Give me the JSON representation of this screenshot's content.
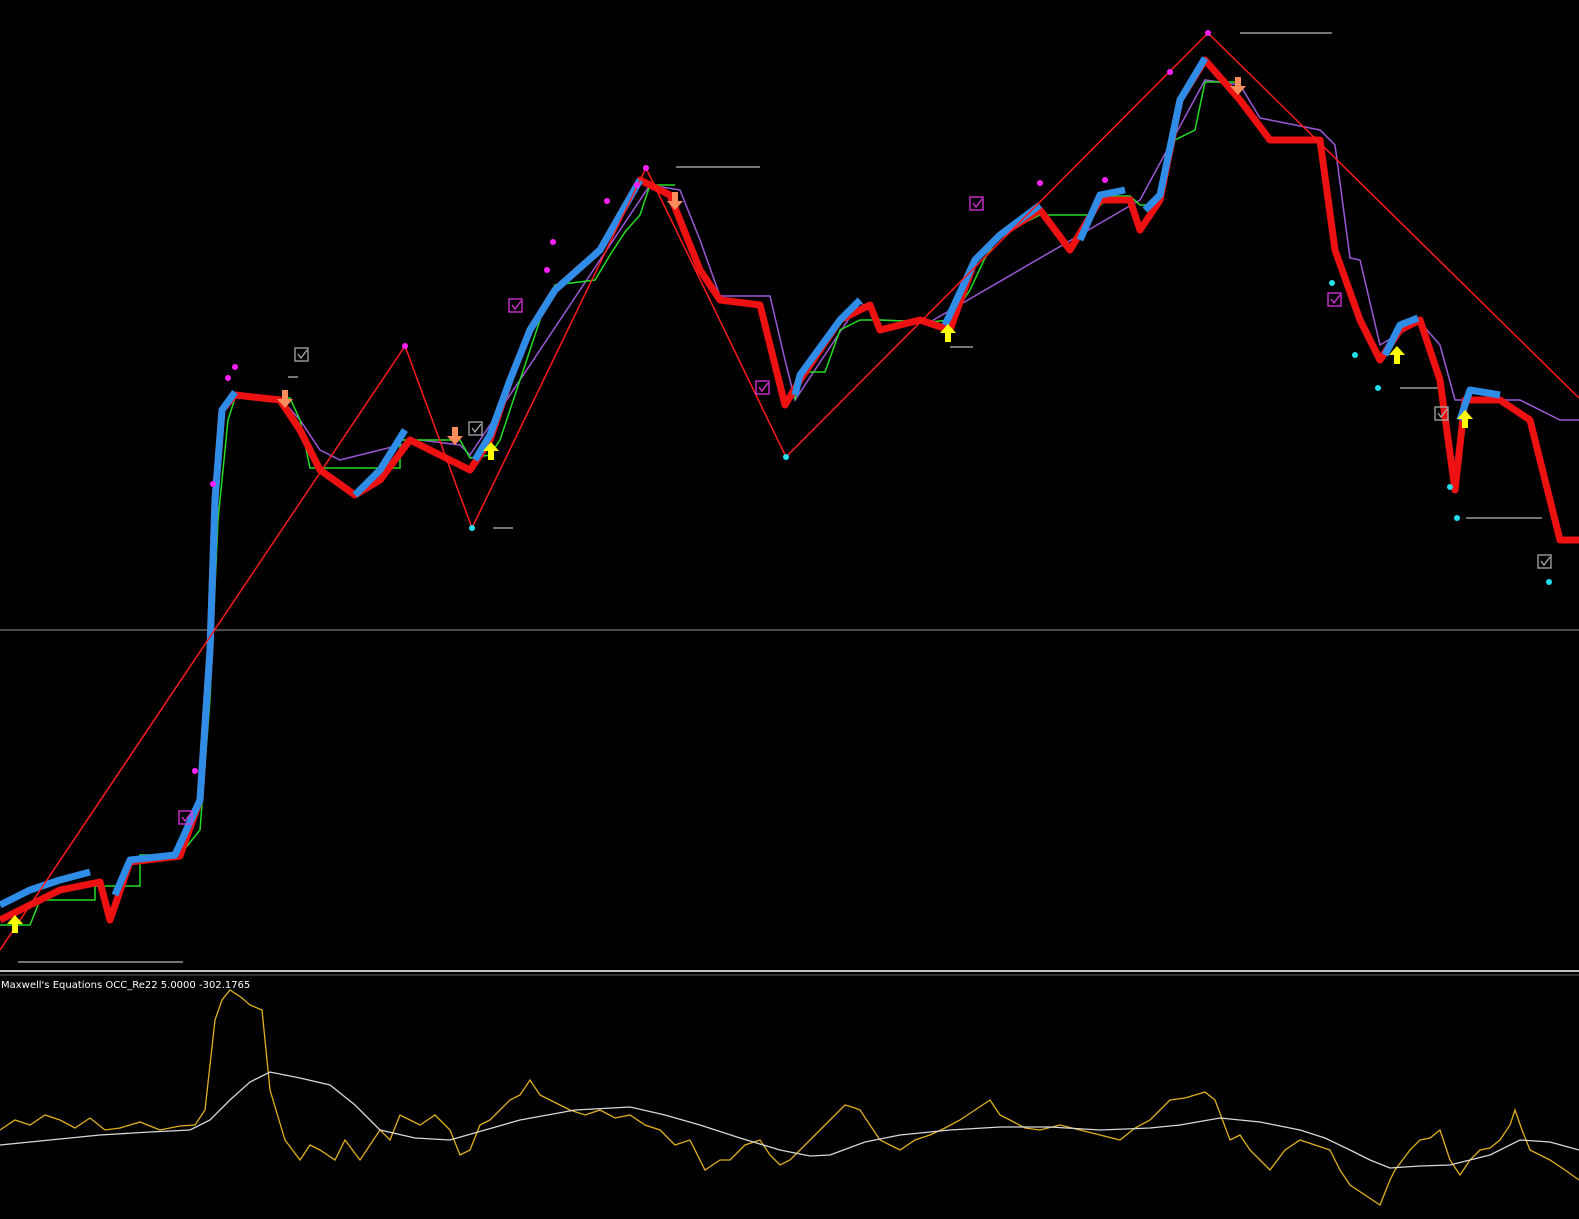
{
  "indicator": {
    "name": "Maxwell's Equations OCC_Re22",
    "values": [
      "5.0000",
      "-302.1765"
    ]
  }
}
